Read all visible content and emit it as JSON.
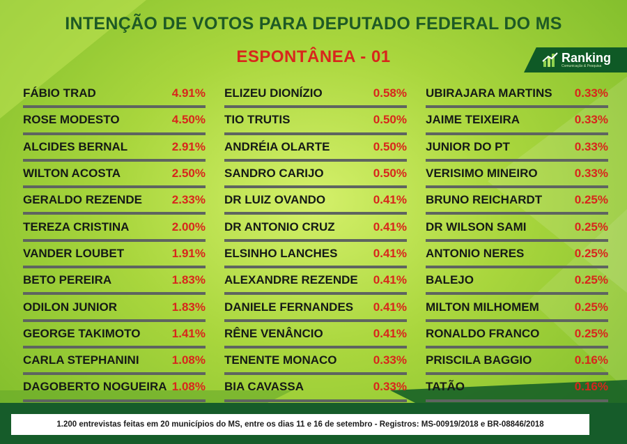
{
  "title": "INTENÇÃO DE VOTOS PARA DEPUTADO FEDERAL DO MS",
  "subtitle": "ESPONTÂNEA - 01",
  "logo": {
    "name": "Ranking",
    "tagline": "Comunicação & Pesquisa",
    "icon": "bar-chart-icon"
  },
  "colors": {
    "title": "#1e5a25",
    "accent": "#d8261c",
    "brand": "#0f5a26",
    "background": "#a9d63d"
  },
  "columns": [
    [
      {
        "name": "FÁBIO TRAD",
        "pct": "4.91%"
      },
      {
        "name": "ROSE MODESTO",
        "pct": "4.50%"
      },
      {
        "name": "ALCIDES BERNAL",
        "pct": "2.91%"
      },
      {
        "name": "WILTON ACOSTA",
        "pct": "2.50%"
      },
      {
        "name": "GERALDO REZENDE",
        "pct": "2.33%"
      },
      {
        "name": "TEREZA CRISTINA",
        "pct": "2.00%"
      },
      {
        "name": "VANDER LOUBET",
        "pct": "1.91%"
      },
      {
        "name": "BETO PEREIRA",
        "pct": "1.83%"
      },
      {
        "name": "ODILON JUNIOR",
        "pct": "1.83%"
      },
      {
        "name": "GEORGE TAKIMOTO",
        "pct": "1.41%"
      },
      {
        "name": "CARLA STEPHANINI",
        "pct": "1.08%"
      },
      {
        "name": "DAGOBERTO NOGUEIRA",
        "pct": "1.08%"
      }
    ],
    [
      {
        "name": "ELIZEU DIONÍZIO",
        "pct": "0.58%"
      },
      {
        "name": "TIO TRUTIS",
        "pct": "0.50%"
      },
      {
        "name": "ANDRÉIA OLARTE",
        "pct": "0.50%"
      },
      {
        "name": "SANDRO CARIJO",
        "pct": "0.50%"
      },
      {
        "name": "DR LUIZ OVANDO",
        "pct": "0.41%"
      },
      {
        "name": "DR ANTONIO CRUZ",
        "pct": "0.41%"
      },
      {
        "name": "ELSINHO LANCHES",
        "pct": "0.41%"
      },
      {
        "name": "ALEXANDRE REZENDE",
        "pct": "0.41%"
      },
      {
        "name": "DANIELE FERNANDES",
        "pct": "0.41%"
      },
      {
        "name": "RÊNE VENÂNCIO",
        "pct": "0.41%"
      },
      {
        "name": "TENENTE MONACO",
        "pct": "0.33%"
      },
      {
        "name": "BIA CAVASSA",
        "pct": "0.33%"
      }
    ],
    [
      {
        "name": "UBIRAJARA MARTINS",
        "pct": "0.33%"
      },
      {
        "name": "JAIME TEIXEIRA",
        "pct": "0.33%"
      },
      {
        "name": "JUNIOR DO PT",
        "pct": "0.33%"
      },
      {
        "name": "VERISIMO MINEIRO",
        "pct": "0.33%"
      },
      {
        "name": "BRUNO REICHARDT",
        "pct": "0.25%"
      },
      {
        "name": "DR WILSON SAMI",
        "pct": "0.25%"
      },
      {
        "name": "ANTONIO NERES",
        "pct": "0.25%"
      },
      {
        "name": "BALEJO",
        "pct": "0.25%"
      },
      {
        "name": "MILTON MILHOMEM",
        "pct": "0.25%"
      },
      {
        "name": "RONALDO FRANCO",
        "pct": "0.25%"
      },
      {
        "name": "PRISCILA BAGGIO",
        "pct": "0.16%"
      },
      {
        "name": "TATÃO",
        "pct": "0.16%"
      }
    ]
  ],
  "footer": "1.200 entrevistas feitas em 20 municípios do MS, entre os dias 11 e 16 de setembro - Registros:  MS-00919/2018 e BR-08846/2018"
}
